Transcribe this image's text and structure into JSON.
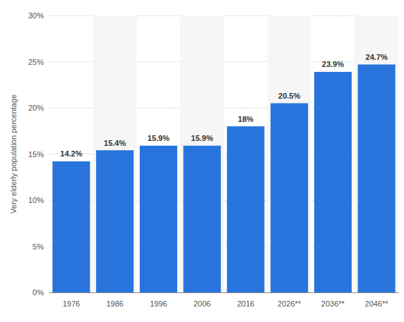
{
  "chart_data": {
    "type": "bar",
    "y_label": "Very elderly population percentage",
    "categories": [
      "1976",
      "1986",
      "1996",
      "2006",
      "2016",
      "2026**",
      "2036**",
      "2046**"
    ],
    "values": [
      14.2,
      15.4,
      15.9,
      15.9,
      18,
      20.5,
      23.9,
      24.7
    ],
    "value_labels": [
      "14.2%",
      "15.4%",
      "15.9%",
      "15.9%",
      "18%",
      "20.5%",
      "23.9%",
      "24.7%"
    ],
    "color": "#2874dc",
    "ylim": [
      0,
      30
    ],
    "yticks": [
      {
        "value": 0,
        "label": "0%"
      },
      {
        "value": 5,
        "label": "5%"
      },
      {
        "value": 10,
        "label": "10%"
      },
      {
        "value": 15,
        "label": "15%"
      },
      {
        "value": 20,
        "label": "20%"
      },
      {
        "value": 25,
        "label": "25%"
      },
      {
        "value": 30,
        "label": "30%"
      }
    ],
    "grid": true,
    "data_labels": true
  }
}
